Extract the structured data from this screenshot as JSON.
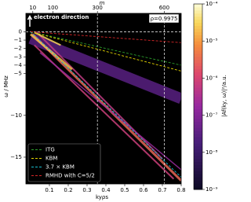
{
  "chart_data": {
    "type": "heatmap",
    "x_label": "kyρs",
    "x2_label": "m",
    "y_label": "ω / MHz",
    "colorbar_label": "|Af(ky, ω)|²/a.u.",
    "annotations": [
      "electron direction",
      "ρ=0.9975"
    ],
    "xlim": [
      -0.025,
      0.8
    ],
    "xticks": [
      0.1,
      0.2,
      0.3,
      0.4,
      0.5,
      0.6,
      0.7,
      0.8
    ],
    "x2lim": [
      -21,
      676
    ],
    "x2ticks": [
      10,
      100,
      300,
      600
    ],
    "ylim": [
      -18.2,
      2.2
    ],
    "yticks": [
      0,
      {
        "value": -1,
        "label": "−1"
      },
      {
        "value": -2,
        "label": "−2"
      },
      {
        "value": -3,
        "label": "−3"
      },
      {
        "value": -4,
        "label": "−4"
      },
      {
        "value": -5,
        "label": "−5"
      },
      {
        "value": -10,
        "label": "−10"
      },
      {
        "value": -15,
        "label": "−15"
      }
    ],
    "clim": [
      1e-09,
      0.0001
    ],
    "log_color": true,
    "cticks": [
      {
        "value": 0.0001,
        "label": "10⁻⁴"
      },
      {
        "value": 1e-05,
        "label": "10⁻⁵"
      },
      {
        "value": 1e-06,
        "label": "10⁻⁶"
      },
      {
        "value": 1e-07,
        "label": "10⁻⁷"
      },
      {
        "value": 1e-08,
        "label": "10⁻⁸"
      },
      {
        "value": 1e-09,
        "label": "10⁻⁹"
      }
    ],
    "vlines": [
      0.355,
      0.71
    ],
    "hlines": [
      0
    ],
    "ridges": [
      {
        "x": [
          0.0,
          0.8
        ],
        "values": [
          -0.8,
          -8
        ],
        "level": 3e-08,
        "width": 14
      },
      {
        "x": [
          0.01,
          0.8
        ],
        "values": [
          -0.3,
          -17.8
        ],
        "level": 3e-06,
        "width": 3
      },
      {
        "x": [
          0.02,
          0.76
        ],
        "values": [
          -1.6,
          -17.6
        ],
        "level": 8e-07,
        "width": 2
      },
      {
        "x": [
          0.03,
          0.7
        ],
        "values": [
          0,
          -15.2
        ],
        "level": 6e-07,
        "width": 2
      },
      {
        "x": [
          0.05,
          0.8
        ],
        "values": [
          -2.5,
          -16.5
        ],
        "level": 2e-07,
        "width": 1.5
      },
      {
        "x": [
          0.0,
          0.22
        ],
        "values": [
          -0.3,
          -4.5
        ],
        "level": 2e-05,
        "width": 3
      },
      {
        "x": [
          0.02,
          0.16
        ],
        "values": [
          -0.1,
          -1.6
        ],
        "level": 3e-05,
        "width": 2
      }
    ],
    "series": [
      {
        "name": "ITG",
        "color": "#2ca02c",
        "x": [
          0,
          0.8
        ],
        "values": [
          0,
          -4.0
        ]
      },
      {
        "name": "KBM",
        "color": "#e6d600",
        "x": [
          0,
          0.8
        ],
        "values": [
          0,
          -4.7
        ]
      },
      {
        "name": "3.7 × KBM",
        "color": "#17becf",
        "x": [
          0,
          0.8
        ],
        "values": [
          0,
          -17.4
        ]
      },
      {
        "name": "RMHD with C=5/2",
        "color": "#d62728",
        "x": [
          0,
          0.8
        ],
        "values": [
          0,
          -1.3
        ]
      }
    ],
    "legend": "lower left"
  }
}
